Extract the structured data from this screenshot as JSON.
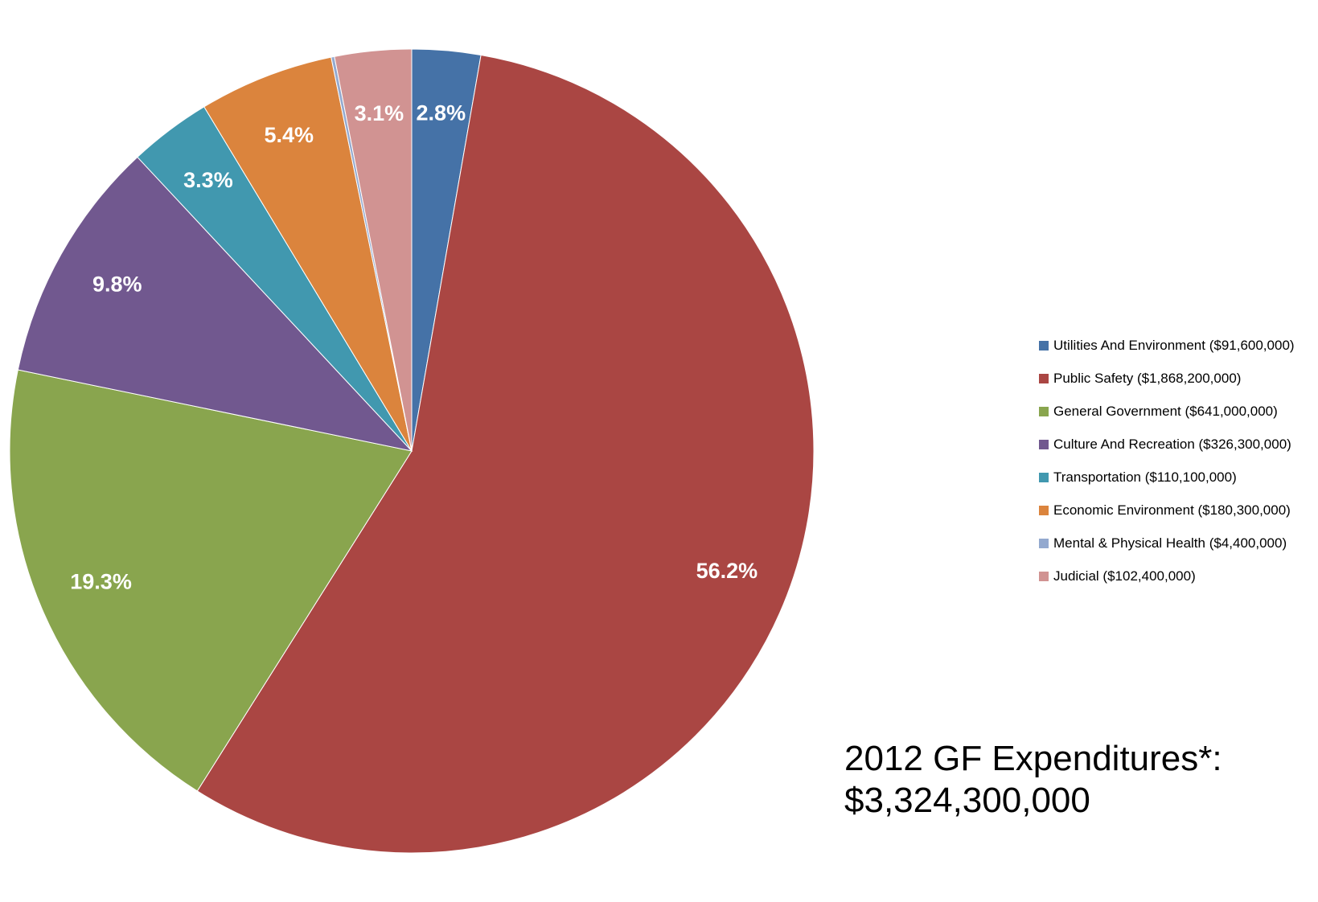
{
  "chart_data": {
    "type": "pie",
    "slices": [
      {
        "name": "Utilities And Environment ($91,600,000)",
        "value": 91600000,
        "percent_label": "2.8%",
        "color": "#4572A7"
      },
      {
        "name": "Public Safety ($1,868,200,000)",
        "value": 1868200000,
        "percent_label": "56.2%",
        "color": "#AA4643"
      },
      {
        "name": "General Government ($641,000,000)",
        "value": 641000000,
        "percent_label": "19.3%",
        "color": "#89A54E"
      },
      {
        "name": "Culture And Recreation ($326,300,000)",
        "value": 326300000,
        "percent_label": "9.8%",
        "color": "#71588F"
      },
      {
        "name": "Transportation ($110,100,000)",
        "value": 110100000,
        "percent_label": "3.3%",
        "color": "#4198AF"
      },
      {
        "name": "Economic Environment ($180,300,000)",
        "value": 180300000,
        "percent_label": "5.4%",
        "color": "#DB843D"
      },
      {
        "name": "Mental & Physical Health ($4,400,000)",
        "value": 4400000,
        "percent_label": "",
        "color": "#93A9CF"
      },
      {
        "name": "Judicial ($102,400,000)",
        "value": 102400000,
        "percent_label": "3.1%",
        "color": "#D19392"
      }
    ],
    "start_angle": "top",
    "direction": "clockwise",
    "legend_position": "right"
  },
  "total": {
    "line1": "2012 GF Expenditures*:",
    "line2": "$3,324,300,000"
  }
}
